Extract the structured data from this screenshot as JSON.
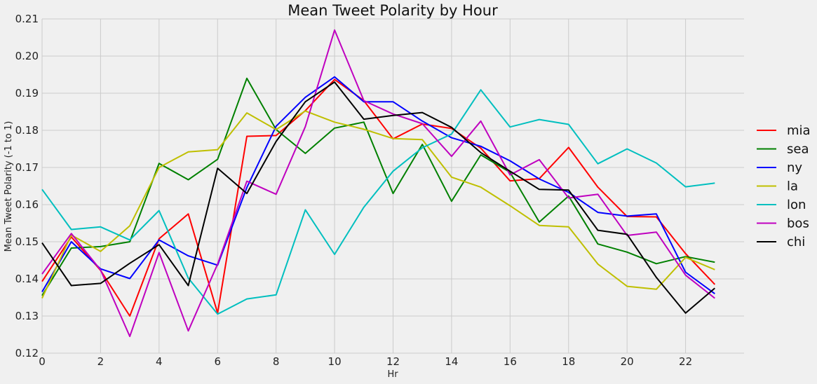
{
  "chart_data": {
    "type": "line",
    "title": "Mean Tweet Polarity by Hour",
    "xlabel": "Hr",
    "ylabel": "Mean Tweet Polarity (-1 to 1)",
    "xlim": [
      0,
      24
    ],
    "ylim": [
      0.12,
      0.21
    ],
    "x_ticks": [
      "0",
      "2",
      "4",
      "6",
      "8",
      "10",
      "12",
      "14",
      "16",
      "18",
      "20",
      "22"
    ],
    "y_ticks": [
      "0.12",
      "0.13",
      "0.14",
      "0.15",
      "0.16",
      "0.17",
      "0.18",
      "0.19",
      "0.20",
      "0.21"
    ],
    "grid": true,
    "legend_position": "right",
    "x": [
      0,
      1,
      2,
      3,
      4,
      5,
      6,
      7,
      8,
      9,
      10,
      11,
      12,
      13,
      14,
      15,
      16,
      17,
      18,
      19,
      20,
      21,
      22,
      23
    ],
    "series": [
      {
        "name": "mia",
        "color": "#ff0000",
        "values": [
          0.1393,
          0.1513,
          0.1423,
          0.13,
          0.1508,
          0.1575,
          0.1308,
          0.1784,
          0.1786,
          0.1853,
          0.1937,
          0.188,
          0.1777,
          0.1817,
          0.1805,
          0.1752,
          0.1664,
          0.167,
          0.1754,
          0.1647,
          0.1568,
          0.1567,
          0.1468,
          0.1385
        ]
      },
      {
        "name": "sea",
        "color": "#008000",
        "values": [
          0.1355,
          0.1483,
          0.1487,
          0.15,
          0.1711,
          0.1667,
          0.1722,
          0.194,
          0.1802,
          0.1738,
          0.1806,
          0.1822,
          0.163,
          0.1762,
          0.1609,
          0.1734,
          0.1687,
          0.1553,
          0.1623,
          0.1494,
          0.1472,
          0.1441,
          0.146,
          0.1445
        ]
      },
      {
        "name": "ny",
        "color": "#0000ff",
        "values": [
          0.1365,
          0.15,
          0.1427,
          0.1401,
          0.1505,
          0.1462,
          0.1437,
          0.1646,
          0.1811,
          0.1889,
          0.1944,
          0.1877,
          0.1877,
          0.1825,
          0.178,
          0.1757,
          0.1718,
          0.1669,
          0.1633,
          0.1579,
          0.1569,
          0.1575,
          0.1418,
          0.136
        ]
      },
      {
        "name": "la",
        "color": "#bfbf00",
        "values": [
          0.1348,
          0.1518,
          0.1474,
          0.1543,
          0.17,
          0.1742,
          0.1748,
          0.1847,
          0.1802,
          0.1852,
          0.1822,
          0.1803,
          0.1778,
          0.1775,
          0.1674,
          0.1647,
          0.1597,
          0.1544,
          0.154,
          0.144,
          0.138,
          0.1372,
          0.1458,
          0.1425
        ]
      },
      {
        "name": "lon",
        "color": "#00bfbf",
        "values": [
          0.1641,
          0.1533,
          0.154,
          0.1505,
          0.1584,
          0.1402,
          0.1305,
          0.1346,
          0.1357,
          0.1586,
          0.1466,
          0.1593,
          0.169,
          0.1753,
          0.179,
          0.1909,
          0.1809,
          0.1829,
          0.1816,
          0.171,
          0.175,
          0.1712,
          0.1648,
          0.1658
        ]
      },
      {
        "name": "bos",
        "color": "#bf00bf",
        "values": [
          0.1413,
          0.1522,
          0.1424,
          0.1245,
          0.1471,
          0.126,
          0.144,
          0.1663,
          0.1628,
          0.181,
          0.207,
          0.188,
          0.1844,
          0.1818,
          0.173,
          0.1825,
          0.168,
          0.1721,
          0.1618,
          0.1628,
          0.1517,
          0.1526,
          0.141,
          0.1348
        ]
      },
      {
        "name": "chi",
        "color": "#000000",
        "values": [
          0.1497,
          0.1382,
          0.1388,
          0.1442,
          0.1492,
          0.1382,
          0.1698,
          0.163,
          0.177,
          0.1877,
          0.193,
          0.183,
          0.184,
          0.1848,
          0.1808,
          0.174,
          0.169,
          0.1641,
          0.1639,
          0.1531,
          0.152,
          0.1404,
          0.1308,
          0.1375
        ]
      }
    ]
  }
}
